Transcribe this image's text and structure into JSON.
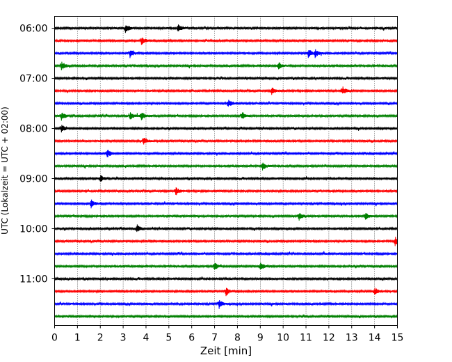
{
  "chart_data": {
    "type": "line",
    "title": "",
    "xlabel": "Zeit  [min]",
    "ylabel": "UTC (Lokalzeit = UTC + 02:00)",
    "xlim": [
      0,
      15
    ],
    "x_ticks": [
      0,
      1,
      2,
      3,
      4,
      5,
      6,
      7,
      8,
      9,
      10,
      11,
      12,
      13,
      14,
      15
    ],
    "x_tick_labels": [
      "0",
      "1",
      "2",
      "3",
      "4",
      "5",
      "6",
      "7",
      "8",
      "9",
      "10",
      "11",
      "12",
      "13",
      "14",
      "15"
    ],
    "y_tick_labels": [
      "06:00",
      "07:00",
      "08:00",
      "09:00",
      "10:00",
      "11:00"
    ],
    "grid": "vertical dotted",
    "trace_colors": [
      "#000000",
      "#ff0000",
      "#0000ff",
      "#008000"
    ],
    "traces": [
      {
        "start": "06:00",
        "events": [
          3.1,
          5.4
        ]
      },
      {
        "start": "06:15",
        "events": [
          3.8
        ]
      },
      {
        "start": "06:30",
        "events": [
          3.3,
          11.1,
          11.4
        ]
      },
      {
        "start": "06:45",
        "events": [
          0.3,
          9.8
        ]
      },
      {
        "start": "07:00",
        "events": []
      },
      {
        "start": "07:15",
        "events": [
          9.5,
          12.6
        ]
      },
      {
        "start": "07:30",
        "events": [
          7.6
        ]
      },
      {
        "start": "07:45",
        "events": [
          0.3,
          3.3,
          3.8,
          8.2
        ]
      },
      {
        "start": "08:00",
        "events": [
          0.3
        ]
      },
      {
        "start": "08:15",
        "events": [
          3.9
        ]
      },
      {
        "start": "08:30",
        "events": [
          2.3
        ]
      },
      {
        "start": "08:45",
        "events": [
          9.1
        ]
      },
      {
        "start": "09:00",
        "events": [
          2.0
        ]
      },
      {
        "start": "09:15",
        "events": [
          5.3
        ]
      },
      {
        "start": "09:30",
        "events": [
          1.6
        ]
      },
      {
        "start": "09:45",
        "events": [
          10.7,
          13.6
        ]
      },
      {
        "start": "10:00",
        "events": [
          3.6
        ]
      },
      {
        "start": "10:15",
        "events": [
          14.9
        ]
      },
      {
        "start": "10:30",
        "events": []
      },
      {
        "start": "10:45",
        "events": [
          7.0,
          9.0
        ]
      },
      {
        "start": "11:00",
        "events": []
      },
      {
        "start": "11:15",
        "events": [
          7.5,
          14.0
        ]
      },
      {
        "start": "11:30",
        "events": [
          7.2
        ]
      },
      {
        "start": "11:45",
        "events": []
      }
    ]
  }
}
